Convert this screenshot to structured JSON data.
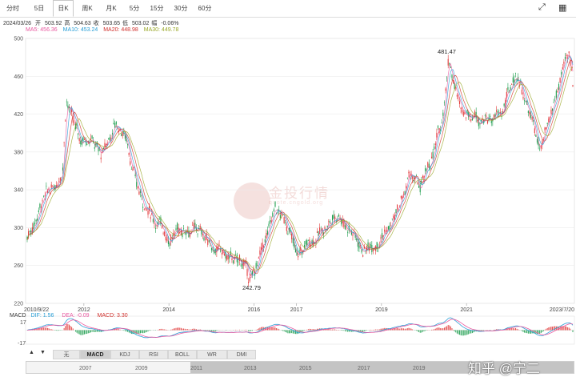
{
  "toolbar": {
    "tabs": [
      "分时",
      "5日",
      "日K",
      "周K",
      "月K",
      "5分",
      "15分",
      "30分",
      "60分"
    ],
    "active_tab": "日K",
    "icons": [
      "expand-icon",
      "grid-icon"
    ]
  },
  "quote": {
    "date": "2024/03/26",
    "open_label": "开",
    "open": "503.92",
    "high_label": "高",
    "high": "504.63",
    "close_label": "收",
    "close": "503.65",
    "low_label": "低",
    "low": "503.02",
    "change_label": "幅",
    "change": "-0.06%"
  },
  "ma": {
    "ma5": "MA5: 456.36",
    "ma10": "MA10: 453.24",
    "ma20": "MA20: 448.98",
    "ma30": "MA30: 449.78"
  },
  "macd": {
    "title": "MACD",
    "dif": "DIF: 1.56",
    "dea": "DEA: -0.09",
    "macd": "MACD: 3.30",
    "ticks": [
      "17",
      "-17"
    ]
  },
  "indicator_tabs": [
    "无",
    "MACD",
    "KDJ",
    "RSI",
    "BOLL",
    "WR",
    "DMI"
  ],
  "indicator_active": "MACD",
  "navigator_years": [
    "2007",
    "2009",
    "2011",
    "2013",
    "2015",
    "2017",
    "2019"
  ],
  "watermark": "知乎 @宁二",
  "colors": {
    "up": "#e23b3b",
    "down": "#1f9e4f",
    "ma5": "#e85aa0",
    "ma10": "#2a9fd6",
    "ma20": "#d0312d",
    "ma30": "#9aa82a"
  },
  "chart_data": {
    "type": "candlestick",
    "ylim": [
      220,
      500
    ],
    "yticks": [
      "500",
      "460",
      "420",
      "380",
      "340",
      "300",
      "260",
      "220"
    ],
    "xticks": [
      "2010/9/22",
      "2012",
      "2014",
      "2016",
      "2017",
      "2019",
      "2021",
      "2023/7/20"
    ],
    "annotations": [
      {
        "label": "481.47",
        "date": "2020",
        "value": 481.47
      },
      {
        "label": "242.79",
        "date": "2016",
        "value": 242.79
      }
    ],
    "series": [
      {
        "date": "2010/9",
        "value": 290
      },
      {
        "date": "2011/1",
        "value": 325
      },
      {
        "date": "2011/4",
        "value": 340
      },
      {
        "date": "2011/7",
        "value": 365
      },
      {
        "date": "2011/8",
        "value": 440
      },
      {
        "date": "2011/10",
        "value": 410
      },
      {
        "date": "2011/12",
        "value": 390
      },
      {
        "date": "2012/3",
        "value": 400
      },
      {
        "date": "2012/6",
        "value": 375
      },
      {
        "date": "2012/10",
        "value": 410
      },
      {
        "date": "2013/1",
        "value": 395
      },
      {
        "date": "2013/4",
        "value": 345
      },
      {
        "date": "2013/7",
        "value": 315
      },
      {
        "date": "2013/10",
        "value": 305
      },
      {
        "date": "2014/1",
        "value": 290
      },
      {
        "date": "2014/6",
        "value": 300
      },
      {
        "date": "2014/10",
        "value": 295
      },
      {
        "date": "2015/2",
        "value": 280
      },
      {
        "date": "2015/6",
        "value": 265
      },
      {
        "date": "2015/10",
        "value": 262
      },
      {
        "date": "2015/12",
        "value": 243
      },
      {
        "date": "2016/3",
        "value": 270
      },
      {
        "date": "2016/7",
        "value": 318
      },
      {
        "date": "2016/11",
        "value": 300
      },
      {
        "date": "2017/1",
        "value": 268
      },
      {
        "date": "2017/5",
        "value": 285
      },
      {
        "date": "2017/9",
        "value": 300
      },
      {
        "date": "2018/1",
        "value": 315
      },
      {
        "date": "2018/4",
        "value": 300
      },
      {
        "date": "2018/8",
        "value": 275
      },
      {
        "date": "2018/12",
        "value": 290
      },
      {
        "date": "2019/3",
        "value": 300
      },
      {
        "date": "2019/6",
        "value": 320
      },
      {
        "date": "2019/9",
        "value": 355
      },
      {
        "date": "2019/12",
        "value": 340
      },
      {
        "date": "2020/3",
        "value": 370
      },
      {
        "date": "2020/6",
        "value": 410
      },
      {
        "date": "2020/8",
        "value": 481
      },
      {
        "date": "2020/11",
        "value": 430
      },
      {
        "date": "2021/3",
        "value": 420
      },
      {
        "date": "2021/7",
        "value": 415
      },
      {
        "date": "2021/11",
        "value": 420
      },
      {
        "date": "2022/3",
        "value": 465
      },
      {
        "date": "2022/7",
        "value": 420
      },
      {
        "date": "2022/10",
        "value": 378
      },
      {
        "date": "2023/1",
        "value": 420
      },
      {
        "date": "2023/4",
        "value": 465
      },
      {
        "date": "2023/6",
        "value": 478
      },
      {
        "date": "2023/7",
        "value": 450
      }
    ]
  }
}
